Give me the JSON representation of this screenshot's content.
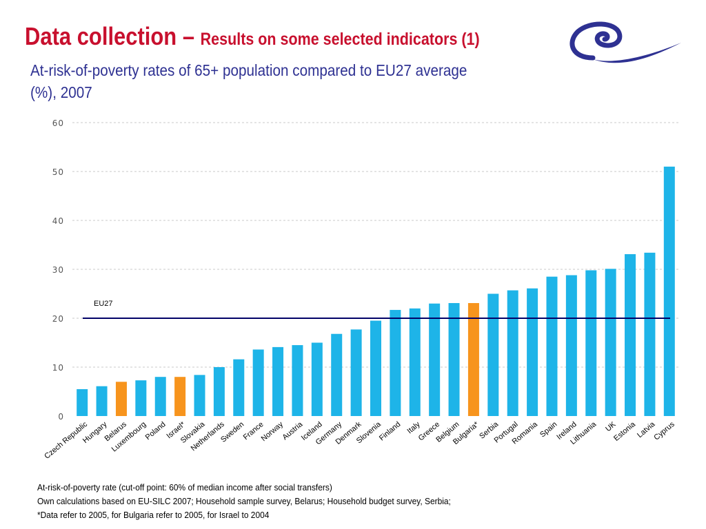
{
  "slide": {
    "title_main": "Data collection – ",
    "title_sub": "Results on some selected indicators (1)",
    "subtitle": "At-risk-of-poverty rates of 65+ population compared to EU27 average (%), 2007",
    "logo_icon": "swirl-logo-icon",
    "colors": {
      "title": "#c8102e",
      "subtitle": "#2e3192",
      "logo": "#2e3192"
    }
  },
  "chart_data": {
    "type": "bar",
    "title": "",
    "xlabel": "",
    "ylabel": "",
    "ylim": [
      0,
      60
    ],
    "yticks": [
      0,
      10,
      20,
      30,
      40,
      50,
      60
    ],
    "grid": true,
    "categories": [
      "Czech Republic",
      "Hungary",
      "Belarus",
      "Luxembourg",
      "Poland",
      "Israel*",
      "Slovakia",
      "Netherlands",
      "Sweden",
      "France",
      "Norway",
      "Austria",
      "Iceland",
      "Germany",
      "Denmark",
      "Slovenia",
      "Finland",
      "Italy",
      "Greece",
      "Belgium",
      "Bulgaria*",
      "Serbia",
      "Portugal",
      "Romania",
      "Spain",
      "Ireland",
      "Lithuania",
      "UK",
      "Estonia",
      "Latvia",
      "Cyprus"
    ],
    "values": [
      5.5,
      6.1,
      7.0,
      7.3,
      8.0,
      8.0,
      8.4,
      10.0,
      11.6,
      13.6,
      14.1,
      14.5,
      15.0,
      16.8,
      17.7,
      19.5,
      21.7,
      22.0,
      23.0,
      23.1,
      23.1,
      25.0,
      25.7,
      26.1,
      28.5,
      28.8,
      29.8,
      30.1,
      33.1,
      33.4,
      51.0
    ],
    "highlighted": [
      "Belarus",
      "Israel*",
      "Bulgaria*"
    ],
    "colors": {
      "default": "#1eb4e8",
      "highlight": "#f7941d",
      "reference_line": "#000066",
      "grid": "#c8c8c8"
    },
    "reference_line": {
      "label": "EU27",
      "value": 20
    }
  },
  "footnotes": [
    "At-risk-of-poverty rate (cut-off point: 60% of median income after social transfers)",
    "Own calculations based on EU-SILC 2007; Household sample survey, Belarus; Household budget survey, Serbia;",
    "*Data refer to 2005, for Bulgaria refer to 2005, for Israel to 2004"
  ]
}
